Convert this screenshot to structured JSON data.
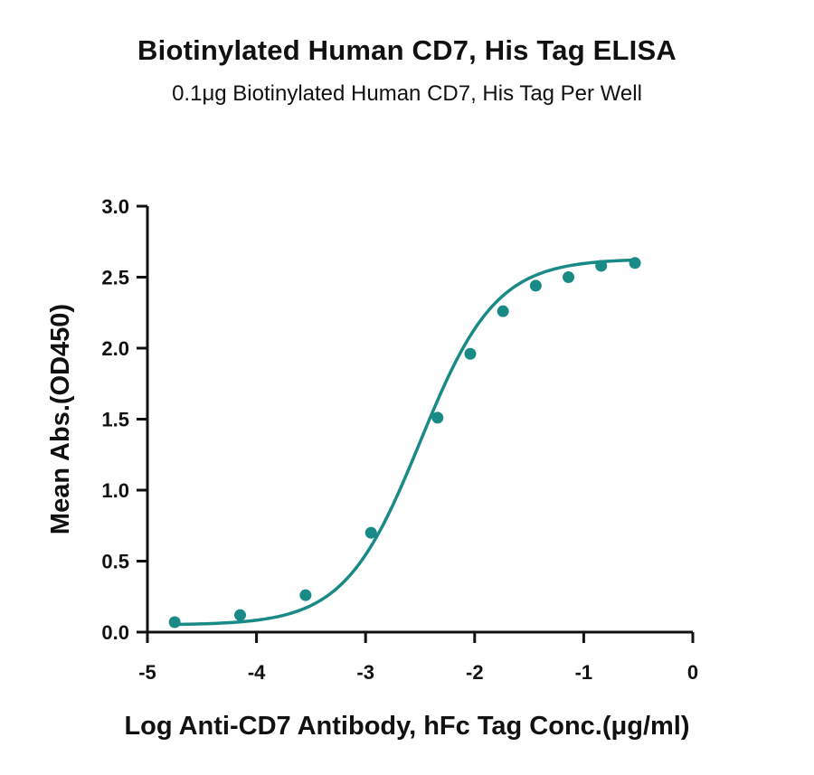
{
  "header": {
    "title": "Biotinylated Human CD7, His Tag ELISA",
    "subtitle": "0.1μg Biotinylated Human CD7, His Tag Per Well"
  },
  "chart_data": {
    "type": "scatter",
    "title": "Biotinylated Human CD7, His Tag ELISA",
    "subtitle": "0.1μg Biotinylated Human CD7, His Tag Per Well",
    "xlabel": "Log Anti-CD7 Antibody, hFc Tag Conc.(μg/ml)",
    "ylabel": "Mean Abs.(OD450)",
    "xlim": [
      -5,
      0
    ],
    "ylim": [
      0,
      3.0
    ],
    "x_ticks": [
      -5,
      -4,
      -3,
      -2,
      -1,
      0
    ],
    "x_tick_labels": [
      "-5",
      "-4",
      "-3",
      "-2",
      "-1",
      "0"
    ],
    "y_ticks": [
      0,
      0.5,
      1.0,
      1.5,
      2.0,
      2.5,
      3.0
    ],
    "y_tick_labels": [
      "0.0",
      "0.5",
      "1.0",
      "1.5",
      "2.0",
      "2.5",
      "3.0"
    ],
    "grid": false,
    "legend": "none",
    "color": "#1a8a87",
    "series": [
      {
        "x": [
          -4.75,
          -4.15,
          -3.55,
          -2.95,
          -2.34,
          -2.04,
          -1.74,
          -1.44,
          -1.14,
          -0.84,
          -0.53
        ],
        "y": [
          0.07,
          0.12,
          0.26,
          0.7,
          1.51,
          1.96,
          2.26,
          2.44,
          2.5,
          2.58,
          2.6
        ]
      }
    ],
    "fit_curve": {
      "model": "4PL",
      "bottom": 0.05,
      "top": 2.63,
      "logEC50": -2.5,
      "hill_slope": 1.25
    }
  }
}
